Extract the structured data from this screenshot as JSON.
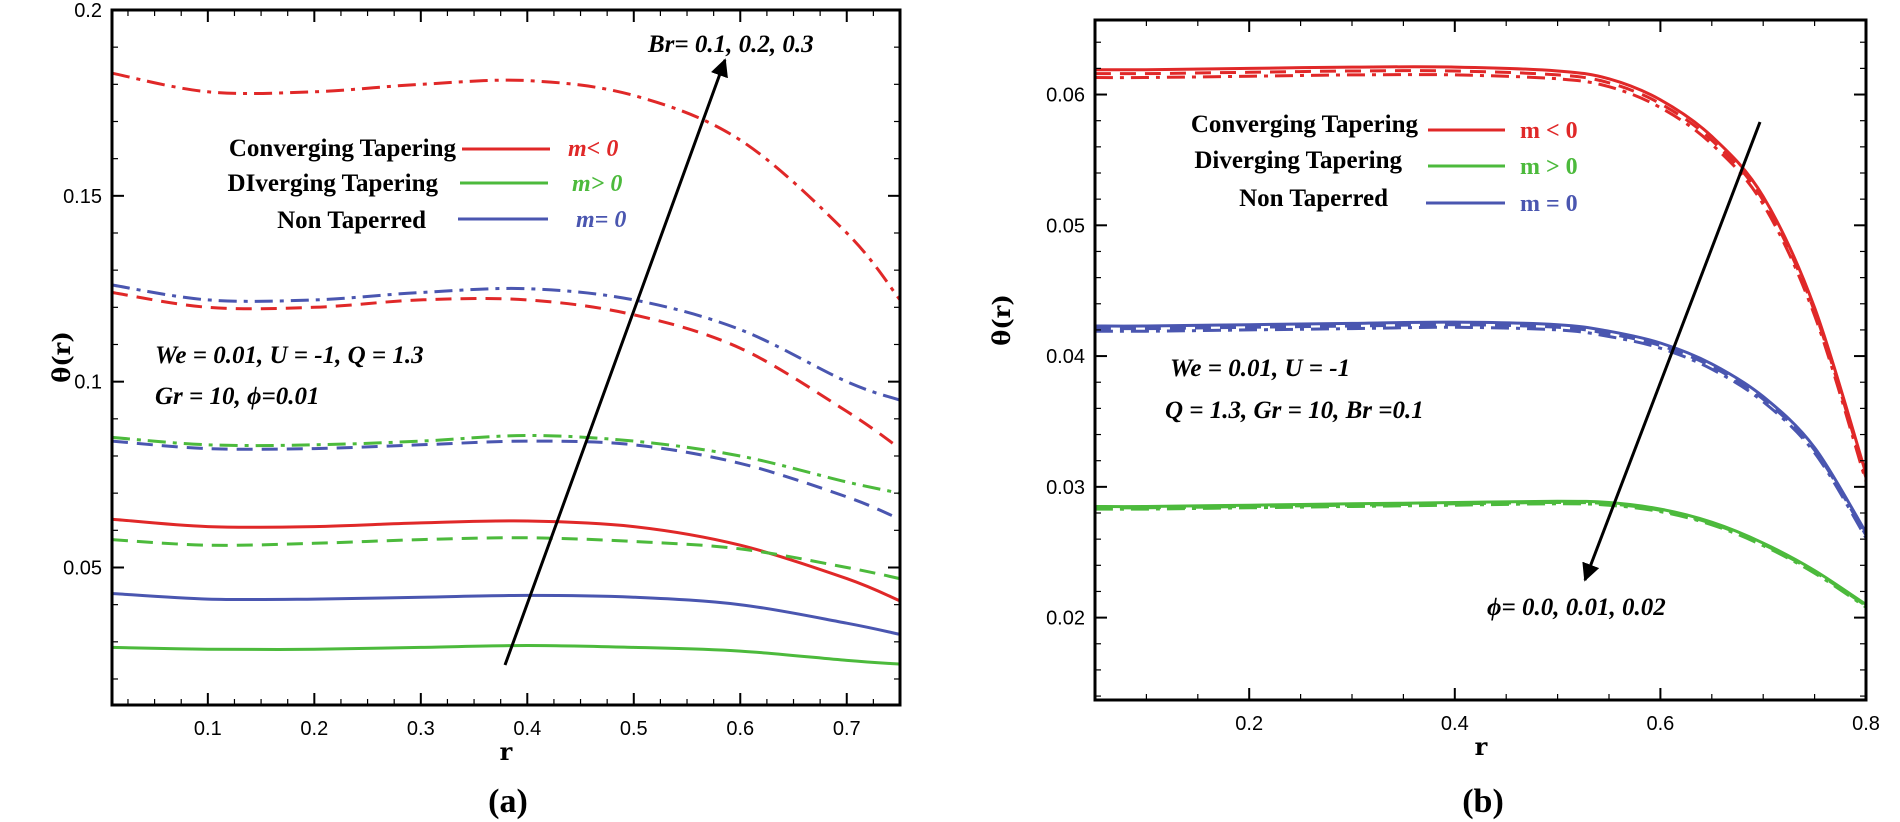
{
  "chart_data": [
    {
      "type": "line",
      "panel": "(a)",
      "xlabel": "r",
      "ylabel": "θ(r)",
      "xlim": [
        0.01,
        0.75
      ],
      "ylim": [
        0.013,
        0.2
      ],
      "xticks": [
        "0.1",
        "0.2",
        "0.3",
        "0.4",
        "0.5",
        "0.6",
        "0.7"
      ],
      "yticks": [
        "0.05",
        "0.1",
        "0.15",
        "0.2"
      ],
      "legend": [
        {
          "label": "Converging Tapering",
          "m": "m< 0",
          "color": "#e02828"
        },
        {
          "label": "DIverging Tapering",
          "m": "m> 0",
          "color": "#4cba3c"
        },
        {
          "label": "Non Taperred",
          "m": "m= 0",
          "color": "#4a56b0"
        }
      ],
      "params": [
        "We = 0.01,  U = -1, Q = 1.3",
        "Gr = 10, ϕ=0.01"
      ],
      "arrow_label": "Br= 0.1, 0.2, 0.3",
      "x": [
        0.01,
        0.1,
        0.2,
        0.3,
        0.4,
        0.5,
        0.6,
        0.7,
        0.75
      ],
      "series": [
        {
          "name": "Converging Tapering, Br=0.1",
          "style": "solid",
          "color": "#e02828",
          "values": [
            0.063,
            0.061,
            0.061,
            0.062,
            0.0625,
            0.061,
            0.056,
            0.047,
            0.041
          ]
        },
        {
          "name": "Non Taperred, Br=0.1",
          "style": "solid",
          "color": "#4a56b0",
          "values": [
            0.043,
            0.0415,
            0.0415,
            0.042,
            0.0425,
            0.042,
            0.04,
            0.035,
            0.032
          ]
        },
        {
          "name": "Diverging Tapering, Br=0.1",
          "style": "solid",
          "color": "#4cba3c",
          "values": [
            0.0285,
            0.028,
            0.028,
            0.0285,
            0.029,
            0.0285,
            0.0275,
            0.025,
            0.024
          ]
        },
        {
          "name": "Diverging Tapering, Br=0.2",
          "style": "dash",
          "color": "#4cba3c",
          "values": [
            0.0575,
            0.056,
            0.0565,
            0.0575,
            0.058,
            0.057,
            0.055,
            0.05,
            0.047
          ]
        },
        {
          "name": "Non Taperred, Br=0.2",
          "style": "dash",
          "color": "#4a56b0",
          "values": [
            0.084,
            0.082,
            0.082,
            0.083,
            0.084,
            0.083,
            0.078,
            0.069,
            0.063
          ]
        },
        {
          "name": "Diverging Tapering, Br=0.3",
          "style": "dashdot",
          "color": "#4cba3c",
          "values": [
            0.085,
            0.083,
            0.083,
            0.084,
            0.0855,
            0.084,
            0.08,
            0.073,
            0.07
          ]
        },
        {
          "name": "Converging Tapering, Br=0.2",
          "style": "dash",
          "color": "#e02828",
          "values": [
            0.124,
            0.12,
            0.12,
            0.122,
            0.122,
            0.118,
            0.109,
            0.092,
            0.082
          ]
        },
        {
          "name": "Non Taperred, Br=0.3",
          "style": "dashdot",
          "color": "#4a56b0",
          "values": [
            0.126,
            0.122,
            0.122,
            0.124,
            0.125,
            0.122,
            0.114,
            0.1,
            0.095
          ]
        },
        {
          "name": "Converging Tapering, Br=0.3",
          "style": "dashdot",
          "color": "#e02828",
          "values": [
            0.183,
            0.178,
            0.178,
            0.18,
            0.181,
            0.177,
            0.165,
            0.14,
            0.122
          ]
        }
      ]
    },
    {
      "type": "line",
      "panel": "(b)",
      "xlabel": "r",
      "ylabel": "θ(r)",
      "xlim": [
        0.05,
        0.8
      ],
      "ylim": [
        0.0137,
        0.0657
      ],
      "xticks": [
        "0.2",
        "0.4",
        "0.6",
        "0.8"
      ],
      "yticks": [
        "0.02",
        "0.03",
        "0.04",
        "0.05",
        "0.06"
      ],
      "legend": [
        {
          "label": "Converging Tapering",
          "m": "m < 0",
          "color": "#e02828"
        },
        {
          "label": "Diverging Tapering",
          "m": "m > 0",
          "color": "#4cba3c"
        },
        {
          "label": "Non Taperred",
          "m": "m = 0",
          "color": "#4a56b0"
        }
      ],
      "params": [
        "We = 0.01, U = -1",
        "Q = 1.3, Gr = 10, Br =0.1"
      ],
      "arrow_label": "ϕ= 0.0, 0.01, 0.02",
      "x": [
        0.05,
        0.1,
        0.2,
        0.3,
        0.4,
        0.5,
        0.55,
        0.6,
        0.65,
        0.7,
        0.75,
        0.8
      ],
      "series": [
        {
          "name": "Converging Tapering, ϕ=0.0",
          "style": "solid",
          "color": "#e02828",
          "values": [
            0.0619,
            0.0619,
            0.062,
            0.0621,
            0.0621,
            0.0618,
            0.0612,
            0.0596,
            0.0568,
            0.0522,
            0.0437,
            0.031
          ]
        },
        {
          "name": "Converging Tapering, ϕ=0.01",
          "style": "dash",
          "color": "#e02828",
          "values": [
            0.0616,
            0.0616,
            0.0617,
            0.0618,
            0.0618,
            0.0615,
            0.0609,
            0.0593,
            0.0565,
            0.0519,
            0.0434,
            0.0307
          ]
        },
        {
          "name": "Converging Tapering, ϕ=0.02",
          "style": "dashdot",
          "color": "#e02828",
          "values": [
            0.0613,
            0.0613,
            0.0614,
            0.0615,
            0.0615,
            0.0612,
            0.0606,
            0.059,
            0.0562,
            0.0516,
            0.0431,
            0.0304
          ]
        },
        {
          "name": "Non Taperred, ϕ=0.0",
          "style": "solid",
          "color": "#4a56b0",
          "values": [
            0.0423,
            0.0423,
            0.0424,
            0.0425,
            0.0426,
            0.0424,
            0.0419,
            0.041,
            0.0394,
            0.0369,
            0.033,
            0.0265
          ]
        },
        {
          "name": "Non Taperred, ϕ=0.01",
          "style": "dash",
          "color": "#4a56b0",
          "values": [
            0.0421,
            0.0421,
            0.0422,
            0.0423,
            0.0424,
            0.0422,
            0.0417,
            0.0408,
            0.0392,
            0.0367,
            0.0328,
            0.0263
          ]
        },
        {
          "name": "Non Taperred, ϕ=0.02",
          "style": "dashdot",
          "color": "#4a56b0",
          "values": [
            0.0419,
            0.0419,
            0.042,
            0.0421,
            0.0422,
            0.042,
            0.0415,
            0.0406,
            0.039,
            0.0365,
            0.0326,
            0.0261
          ]
        },
        {
          "name": "Diverging Tapering, ϕ=0.0",
          "style": "solid",
          "color": "#4cba3c",
          "values": [
            0.0285,
            0.0285,
            0.0286,
            0.0287,
            0.0288,
            0.0289,
            0.0288,
            0.0283,
            0.0273,
            0.0257,
            0.0236,
            0.021
          ]
        },
        {
          "name": "Diverging Tapering, ϕ=0.01",
          "style": "dash",
          "color": "#4cba3c",
          "values": [
            0.0284,
            0.0284,
            0.0285,
            0.0286,
            0.0287,
            0.0288,
            0.0287,
            0.0282,
            0.0272,
            0.0256,
            0.0235,
            0.0209
          ]
        },
        {
          "name": "Diverging Tapering, ϕ=0.02",
          "style": "dashdot",
          "color": "#4cba3c",
          "values": [
            0.0283,
            0.0283,
            0.0284,
            0.0285,
            0.0286,
            0.0287,
            0.0286,
            0.0281,
            0.0271,
            0.0255,
            0.0234,
            0.0208
          ]
        }
      ]
    }
  ],
  "captions": {
    "a": "(a)",
    "b": "(b)"
  }
}
